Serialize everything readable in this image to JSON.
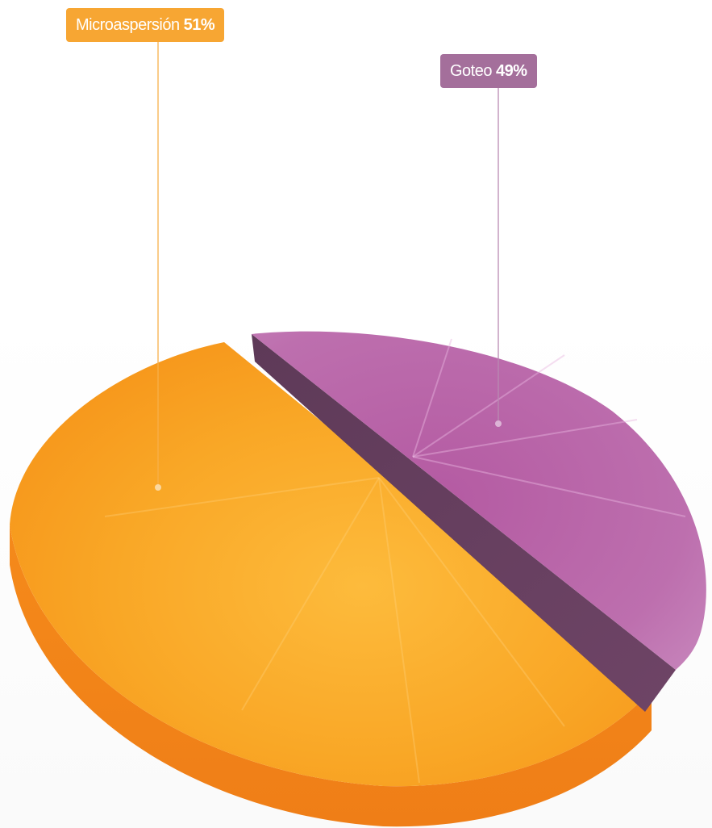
{
  "chart_data": {
    "type": "pie",
    "title": "",
    "slices": [
      {
        "label": "Microaspersión",
        "value": 51,
        "display": "51%",
        "color": "#f9a11e"
      },
      {
        "label": "Goteo",
        "value": 49,
        "display": "49%",
        "color": "#b565a4"
      }
    ]
  }
}
